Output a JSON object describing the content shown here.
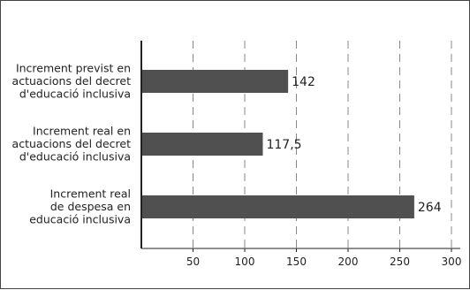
{
  "chart_data": {
    "type": "bar",
    "orientation": "horizontal",
    "categories": [
      [
        "Increment previst en",
        "actuacions del decret",
        "d'educació inclusiva"
      ],
      [
        "Increment real en",
        "actuacions del decret",
        "d'educació inclusiva"
      ],
      [
        "Increment real",
        "de despesa en",
        "educació inclusiva"
      ]
    ],
    "values": [
      142,
      117.5,
      264
    ],
    "value_labels": [
      "142",
      "117,5",
      "264"
    ],
    "x_ticks": [
      50,
      100,
      150,
      200,
      250,
      300
    ],
    "x_tick_labels": [
      "50",
      "100",
      "150",
      "200",
      "250",
      "300"
    ],
    "xlim": [
      0,
      305
    ],
    "grid": "vertical dashed",
    "bar_color": "#505050"
  }
}
